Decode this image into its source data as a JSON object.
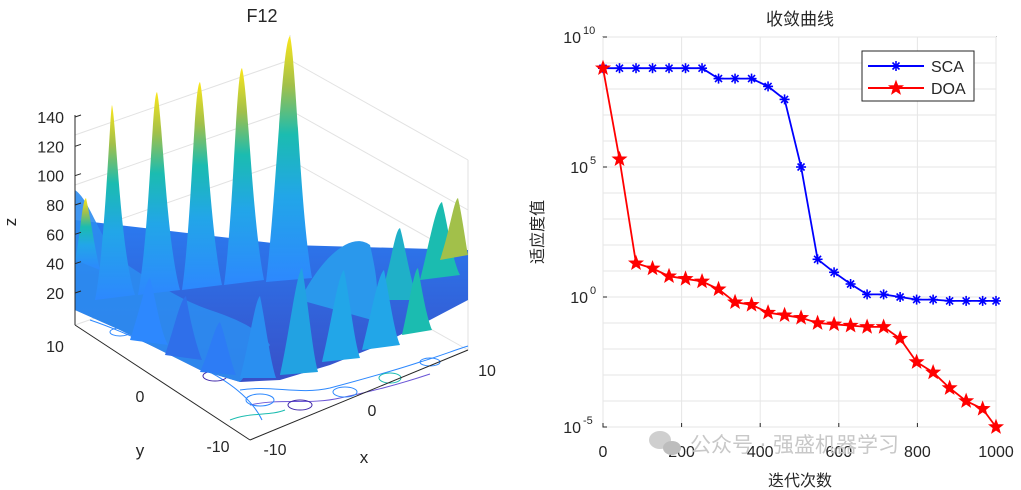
{
  "watermark": "公众号 · 强盛机器学习",
  "surface_plot": {
    "title": "F12",
    "xlabel": "x",
    "ylabel": "y",
    "zlabel": "z",
    "x_ticks": [
      "-10",
      "0",
      "10"
    ],
    "y_ticks": [
      "10",
      "0",
      "-10"
    ],
    "z_ticks": [
      "20",
      "40",
      "60",
      "80",
      "100",
      "120",
      "140"
    ],
    "colormap": [
      "#3e26a8",
      "#2d88fe",
      "#1bbcb0",
      "#a2c04a",
      "#fbe61a"
    ]
  },
  "chart_data": {
    "type": "line",
    "title": "收敛曲线",
    "xlabel": "迭代次数",
    "ylabel": "适应度值",
    "yscale": "log",
    "xlim": [
      0,
      1000
    ],
    "ylim_exp": [
      -5,
      10
    ],
    "x_ticks": [
      "0",
      "200",
      "400",
      "600",
      "800",
      "1000"
    ],
    "y_ticks": [
      {
        "base": "10",
        "exp": "-5",
        "value_exp": -5
      },
      {
        "base": "10",
        "exp": "0",
        "value_exp": 0
      },
      {
        "base": "10",
        "exp": "5",
        "value_exp": 5
      },
      {
        "base": "10",
        "exp": "10",
        "value_exp": 10
      }
    ],
    "legend_position": "top-right",
    "series": [
      {
        "name": "SCA",
        "color": "#0000ff",
        "marker": "asterisk",
        "x": [
          0,
          42,
          84,
          126,
          168,
          210,
          252,
          294,
          336,
          378,
          420,
          462,
          504,
          546,
          588,
          630,
          672,
          714,
          756,
          798,
          840,
          882,
          924,
          966,
          1000
        ],
        "log10_y": [
          8.8,
          8.8,
          8.8,
          8.8,
          8.8,
          8.8,
          8.8,
          8.4,
          8.4,
          8.4,
          8.1,
          7.6,
          5.0,
          1.45,
          0.95,
          0.5,
          0.1,
          0.1,
          0.0,
          -0.1,
          -0.1,
          -0.15,
          -0.15,
          -0.15,
          -0.15
        ]
      },
      {
        "name": "DOA",
        "color": "#ff0000",
        "marker": "pentagram",
        "x": [
          0,
          42,
          84,
          126,
          168,
          210,
          252,
          294,
          336,
          378,
          420,
          462,
          504,
          546,
          588,
          630,
          672,
          714,
          756,
          798,
          840,
          882,
          924,
          966,
          1000
        ],
        "log10_y": [
          8.8,
          5.3,
          1.3,
          1.1,
          0.8,
          0.7,
          0.6,
          0.3,
          -0.2,
          -0.3,
          -0.6,
          -0.7,
          -0.8,
          -1.0,
          -1.05,
          -1.1,
          -1.15,
          -1.15,
          -1.6,
          -2.5,
          -2.9,
          -3.5,
          -4.0,
          -4.3,
          -5.0
        ]
      }
    ]
  }
}
